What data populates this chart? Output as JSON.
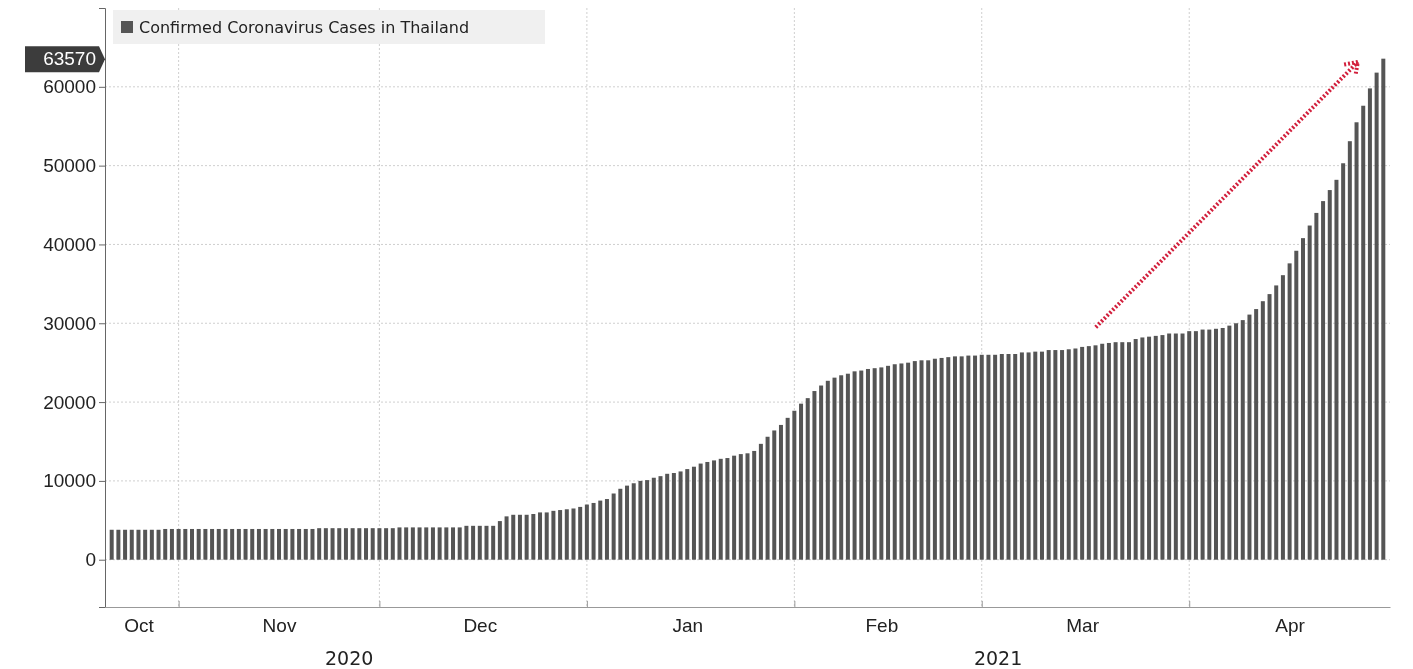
{
  "chart_data": {
    "type": "bar",
    "xlim": [
      "2020-10-21",
      "2021-05-01"
    ],
    "xticks": [
      {
        "value": "2020-11-01",
        "label": null
      },
      {
        "value": "2020-12-01",
        "label": null
      },
      {
        "value": "2021-01-01",
        "label": null
      },
      {
        "value": "2021-02-01",
        "label": null
      },
      {
        "value": "2021-03-01",
        "label": null
      },
      {
        "value": "2021-04-01",
        "label": null
      },
      {
        "value": "2020-10-26",
        "label": "Oct"
      },
      {
        "value": "2020-11-16",
        "label": "Nov"
      },
      {
        "value": "2020-12-16",
        "label": "Dec"
      },
      {
        "value": "2021-01-16",
        "label": "Jan"
      },
      {
        "value": "2021-02-14",
        "label": "Feb"
      },
      {
        "value": "2021-03-16",
        "label": "Mar"
      },
      {
        "value": "2021-04-16",
        "label": "Apr"
      }
    ],
    "ylim": [
      -6000,
      70000
    ],
    "yticks": [
      0,
      10000,
      20000,
      30000,
      40000,
      50000,
      60000,
      {
        "value": 63570,
        "label": "63570"
      }
    ],
    "grid": true,
    "legend": "top left",
    "annotations": [
      "2020",
      "2021"
    ],
    "x": [
      "2020-10-22",
      "2020-10-23",
      "2020-10-24",
      "2020-10-25",
      "2020-10-26",
      "2020-10-27",
      "2020-10-28",
      "2020-10-29",
      "2020-10-30",
      "2020-10-31",
      "2020-11-01",
      "2020-11-02",
      "2020-11-03",
      "2020-11-04",
      "2020-11-05",
      "2020-11-06",
      "2020-11-07",
      "2020-11-08",
      "2020-11-09",
      "2020-11-10",
      "2020-11-11",
      "2020-11-12",
      "2020-11-13",
      "2020-11-14",
      "2020-11-15",
      "2020-11-16",
      "2020-11-17",
      "2020-11-18",
      "2020-11-19",
      "2020-11-20",
      "2020-11-21",
      "2020-11-22",
      "2020-11-23",
      "2020-11-24",
      "2020-11-25",
      "2020-11-26",
      "2020-11-27",
      "2020-11-28",
      "2020-11-29",
      "2020-11-30",
      "2020-12-01",
      "2020-12-02",
      "2020-12-03",
      "2020-12-04",
      "2020-12-05",
      "2020-12-06",
      "2020-12-07",
      "2020-12-08",
      "2020-12-09",
      "2020-12-10",
      "2020-12-11",
      "2020-12-12",
      "2020-12-13",
      "2020-12-14",
      "2020-12-15",
      "2020-12-16",
      "2020-12-17",
      "2020-12-18",
      "2020-12-19",
      "2020-12-20",
      "2020-12-21",
      "2020-12-22",
      "2020-12-23",
      "2020-12-24",
      "2020-12-25",
      "2020-12-26",
      "2020-12-27",
      "2020-12-28",
      "2020-12-29",
      "2020-12-30",
      "2020-12-31",
      "2021-01-01",
      "2021-01-02",
      "2021-01-03",
      "2021-01-04",
      "2021-01-05",
      "2021-01-06",
      "2021-01-07",
      "2021-01-08",
      "2021-01-09",
      "2021-01-10",
      "2021-01-11",
      "2021-01-12",
      "2021-01-13",
      "2021-01-14",
      "2021-01-15",
      "2021-01-16",
      "2021-01-17",
      "2021-01-18",
      "2021-01-19",
      "2021-01-20",
      "2021-01-21",
      "2021-01-22",
      "2021-01-23",
      "2021-01-24",
      "2021-01-25",
      "2021-01-26",
      "2021-01-27",
      "2021-01-28",
      "2021-01-29",
      "2021-01-30",
      "2021-01-31",
      "2021-02-01",
      "2021-02-02",
      "2021-02-03",
      "2021-02-04",
      "2021-02-05",
      "2021-02-06",
      "2021-02-07",
      "2021-02-08",
      "2021-02-09",
      "2021-02-10",
      "2021-02-11",
      "2021-02-12",
      "2021-02-13",
      "2021-02-14",
      "2021-02-15",
      "2021-02-16",
      "2021-02-17",
      "2021-02-18",
      "2021-02-19",
      "2021-02-20",
      "2021-02-21",
      "2021-02-22",
      "2021-02-23",
      "2021-02-24",
      "2021-02-25",
      "2021-02-26",
      "2021-02-27",
      "2021-02-28",
      "2021-03-01",
      "2021-03-02",
      "2021-03-03",
      "2021-03-04",
      "2021-03-05",
      "2021-03-06",
      "2021-03-07",
      "2021-03-08",
      "2021-03-09",
      "2021-03-10",
      "2021-03-11",
      "2021-03-12",
      "2021-03-13",
      "2021-03-14",
      "2021-03-15",
      "2021-03-16",
      "2021-03-17",
      "2021-03-18",
      "2021-03-19",
      "2021-03-20",
      "2021-03-21",
      "2021-03-22",
      "2021-03-23",
      "2021-03-24",
      "2021-03-25",
      "2021-03-26",
      "2021-03-27",
      "2021-03-28",
      "2021-03-29",
      "2021-03-30",
      "2021-03-31",
      "2021-04-01",
      "2021-04-02",
      "2021-04-03",
      "2021-04-04",
      "2021-04-05",
      "2021-04-06",
      "2021-04-07",
      "2021-04-08",
      "2021-04-09",
      "2021-04-10",
      "2021-04-11",
      "2021-04-12",
      "2021-04-13",
      "2021-04-14",
      "2021-04-15",
      "2021-04-16",
      "2021-04-17",
      "2021-04-18",
      "2021-04-19",
      "2021-04-20",
      "2021-04-21",
      "2021-04-22",
      "2021-04-23",
      "2021-04-24",
      "2021-04-25",
      "2021-04-26",
      "2021-04-27",
      "2021-04-28",
      "2021-04-29",
      "2021-04-30"
    ],
    "series": [
      {
        "name": "Confirmed Coronavirus Cases in Thailand",
        "color": "#555555",
        "values": [
          3800,
          3800,
          3800,
          3800,
          3800,
          3800,
          3800,
          3800,
          3900,
          3900,
          3900,
          3900,
          3900,
          3900,
          3900,
          3900,
          3900,
          3900,
          3900,
          3900,
          3900,
          3900,
          3900,
          3900,
          3900,
          3900,
          3900,
          3900,
          3900,
          3900,
          3900,
          4000,
          4000,
          4000,
          4000,
          4000,
          4000,
          4000,
          4000,
          4000,
          4000,
          4000,
          4000,
          4100,
          4100,
          4100,
          4100,
          4100,
          4100,
          4100,
          4100,
          4100,
          4100,
          4300,
          4300,
          4300,
          4300,
          4300,
          4900,
          5500,
          5700,
          5700,
          5700,
          5800,
          6000,
          6000,
          6200,
          6300,
          6400,
          6500,
          6700,
          7000,
          7200,
          7500,
          7700,
          8400,
          9000,
          9400,
          9700,
          10000,
          10100,
          10400,
          10600,
          10900,
          11000,
          11200,
          11500,
          11800,
          12200,
          12400,
          12600,
          12800,
          12900,
          13200,
          13400,
          13500,
          13800,
          14700,
          15600,
          16400,
          17100,
          18000,
          18900,
          19800,
          20500,
          21400,
          22100,
          22700,
          23100,
          23400,
          23600,
          23900,
          24000,
          24200,
          24300,
          24400,
          24600,
          24800,
          24900,
          25000,
          25200,
          25300,
          25300,
          25500,
          25600,
          25700,
          25800,
          25800,
          25900,
          25900,
          26000,
          26000,
          26000,
          26100,
          26100,
          26100,
          26300,
          26300,
          26400,
          26400,
          26600,
          26600,
          26600,
          26700,
          26800,
          27000,
          27100,
          27200,
          27400,
          27500,
          27600,
          27600,
          27600,
          28000,
          28200,
          28300,
          28400,
          28500,
          28700,
          28700,
          28700,
          29000,
          29000,
          29200,
          29200,
          29300,
          29400,
          29700,
          30000,
          30400,
          31100,
          31800,
          32800,
          33700,
          34800,
          36100,
          37600,
          39200,
          40800,
          42400,
          44000,
          45500,
          46900,
          48200,
          50300,
          53100,
          55500,
          57600,
          59800,
          61800,
          63570
        ]
      }
    ]
  }
}
